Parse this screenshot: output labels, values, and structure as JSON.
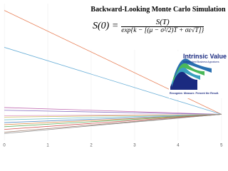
{
  "chart_data": {
    "type": "line",
    "title": "Backward-Looking Monte Carlo Simulation",
    "formula": {
      "lhs": "S(0) =",
      "numerator": "S(T)",
      "denominator": "exp{k − [(μ − σ²/2)T + σε√T]}"
    },
    "logo": {
      "name": "Intrinsic Value",
      "subtitle": "Independent Business Appraisers",
      "tagline": "Recognize. Measure. Present the Result."
    },
    "x": [
      0,
      5
    ],
    "xlim": [
      -0.1,
      5.15
    ],
    "xticks": [
      0,
      1,
      2,
      3,
      4,
      5
    ],
    "ylim": [
      0,
      10
    ],
    "grid": true,
    "series": [
      {
        "color": "#e8825a",
        "values": [
          9.5,
          1.9
        ]
      },
      {
        "color": "#6cb0d8",
        "values": [
          6.8,
          1.9
        ]
      },
      {
        "color": "#c06ab0",
        "values": [
          2.4,
          1.9
        ]
      },
      {
        "color": "#8a6fc0",
        "values": [
          2.2,
          1.9
        ]
      },
      {
        "color": "#e2a0c8",
        "values": [
          1.8,
          1.9
        ]
      },
      {
        "color": "#d0c060",
        "values": [
          1.7,
          1.9
        ]
      },
      {
        "color": "#70c0c8",
        "values": [
          1.5,
          1.9
        ]
      },
      {
        "color": "#5a90c8",
        "values": [
          1.3,
          1.9
        ]
      },
      {
        "color": "#e09050",
        "values": [
          1.15,
          1.9
        ]
      },
      {
        "color": "#60b060",
        "values": [
          1.0,
          1.9
        ]
      },
      {
        "color": "#d05050",
        "values": [
          0.8,
          1.9
        ]
      },
      {
        "color": "#a08070",
        "values": [
          0.6,
          1.9
        ]
      },
      {
        "color": "#909090",
        "values": [
          0.5,
          1.9
        ]
      }
    ]
  }
}
